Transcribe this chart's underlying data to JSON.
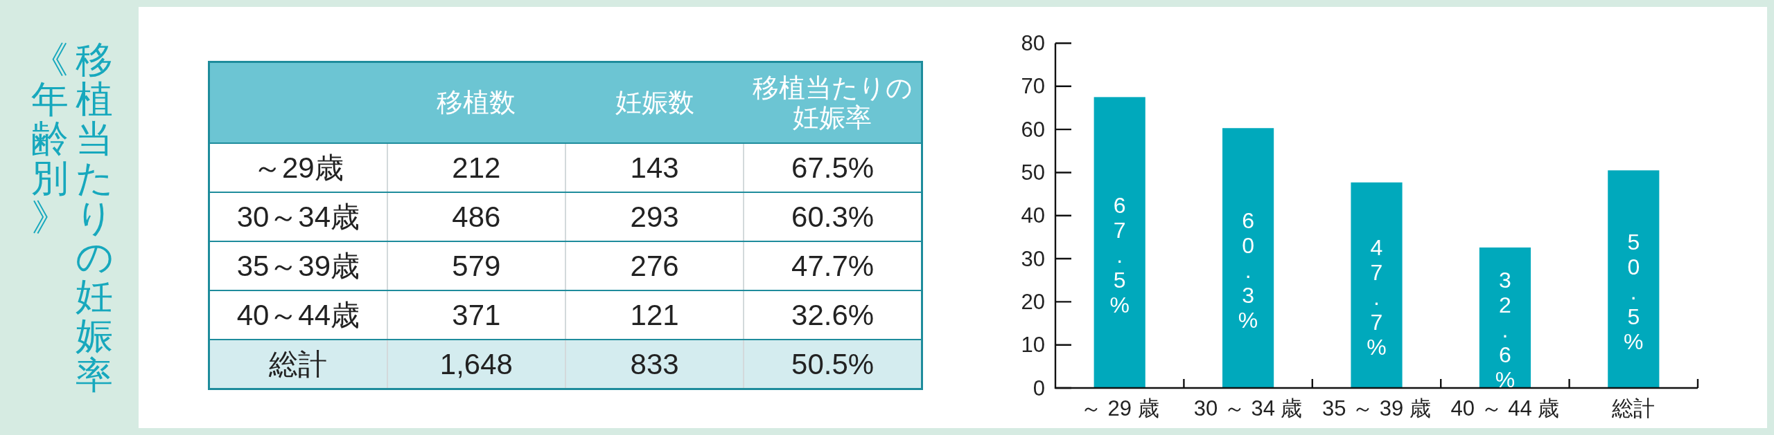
{
  "chart_data": [
    {
      "type": "heatmap",
      "title": "移植当たりの妊娠率《年齢別》",
      "categories": [
        "移植数",
        "妊娠数",
        "移植当たりの妊娠率"
      ],
      "y_categories": [
        "～29歳",
        "30～34歳",
        "35～39歳",
        "40～44歳",
        "総計"
      ],
      "cells": [
        [
          212,
          143,
          67.5
        ],
        [
          486,
          293,
          60.3
        ],
        [
          579,
          276,
          47.7
        ],
        [
          371,
          121,
          32.6
        ],
        [
          1648,
          833,
          50.5
        ]
      ],
      "cell_labels": [
        [
          "212",
          "143",
          "67.5%"
        ],
        [
          "486",
          "293",
          "60.3%"
        ],
        [
          "579",
          "276",
          "47.7%"
        ],
        [
          "371",
          "121",
          "32.6%"
        ],
        [
          "1,648",
          "833",
          "50.5%"
        ]
      ]
    },
    {
      "type": "bar",
      "categories": [
        "～ 29 歳",
        "30 ～ 34 歳",
        "35 ～ 39 歳",
        "40 ～ 44 歳",
        "総計"
      ],
      "values": [
        67.5,
        60.3,
        47.7,
        32.6,
        50.5
      ],
      "color": "#00a9bc",
      "ylim": [
        0,
        80
      ],
      "yticks": [
        0,
        10,
        20,
        30,
        40,
        50,
        60,
        70,
        80
      ],
      "value_labels": [
        "67.5%",
        "60.3%",
        "47.7%",
        "32.6%",
        "50.5%"
      ]
    }
  ]
}
